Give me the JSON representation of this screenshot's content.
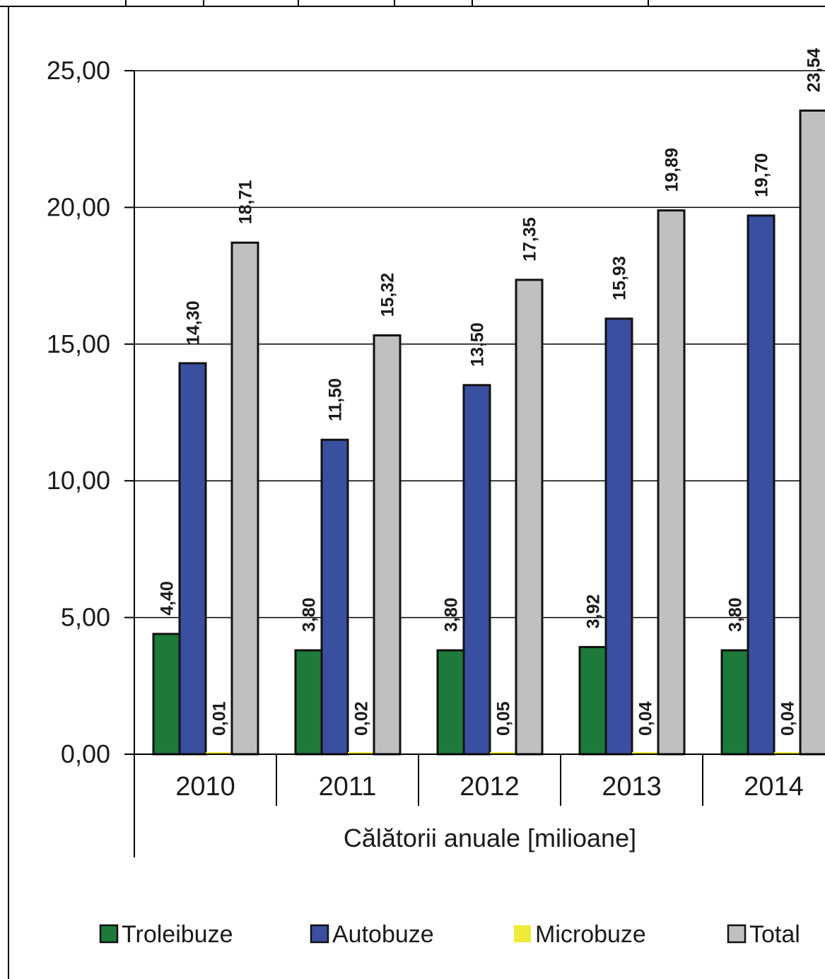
{
  "chart_data": {
    "type": "bar",
    "categories": [
      "2010",
      "2011",
      "2012",
      "2013",
      "2014"
    ],
    "xlabel": "Călătorii anuale [milioane]",
    "ylabel": "",
    "ylim": [
      0,
      25
    ],
    "yticks": [
      "0,00",
      "5,00",
      "10,00",
      "15,00",
      "20,00",
      "25,00"
    ],
    "grid": true,
    "legend_position": "bottom",
    "series": [
      {
        "name": "Troleibuze",
        "color": "#1e7a3a",
        "values": [
          4.4,
          3.8,
          3.8,
          3.92,
          3.8
        ],
        "labels": [
          "4,40",
          "3,80",
          "3,80",
          "3,92",
          "3,80"
        ]
      },
      {
        "name": "Autobuze",
        "color": "#3a4fa0",
        "values": [
          14.3,
          11.5,
          13.5,
          15.93,
          19.7
        ],
        "labels": [
          "14,30",
          "11,50",
          "13,50",
          "15,93",
          "19,70"
        ]
      },
      {
        "name": "Microbuze",
        "color": "#f0ea3a",
        "values": [
          0.01,
          0.02,
          0.05,
          0.04,
          0.04
        ],
        "labels": [
          "0,01",
          "0,02",
          "0,05",
          "0,04",
          "0,04"
        ]
      },
      {
        "name": "Total",
        "color": "#c0c0c0",
        "values": [
          18.71,
          15.32,
          17.35,
          19.89,
          23.54
        ],
        "labels": [
          "18,71",
          "15,32",
          "17,35",
          "19,89",
          "23,54"
        ]
      }
    ]
  }
}
